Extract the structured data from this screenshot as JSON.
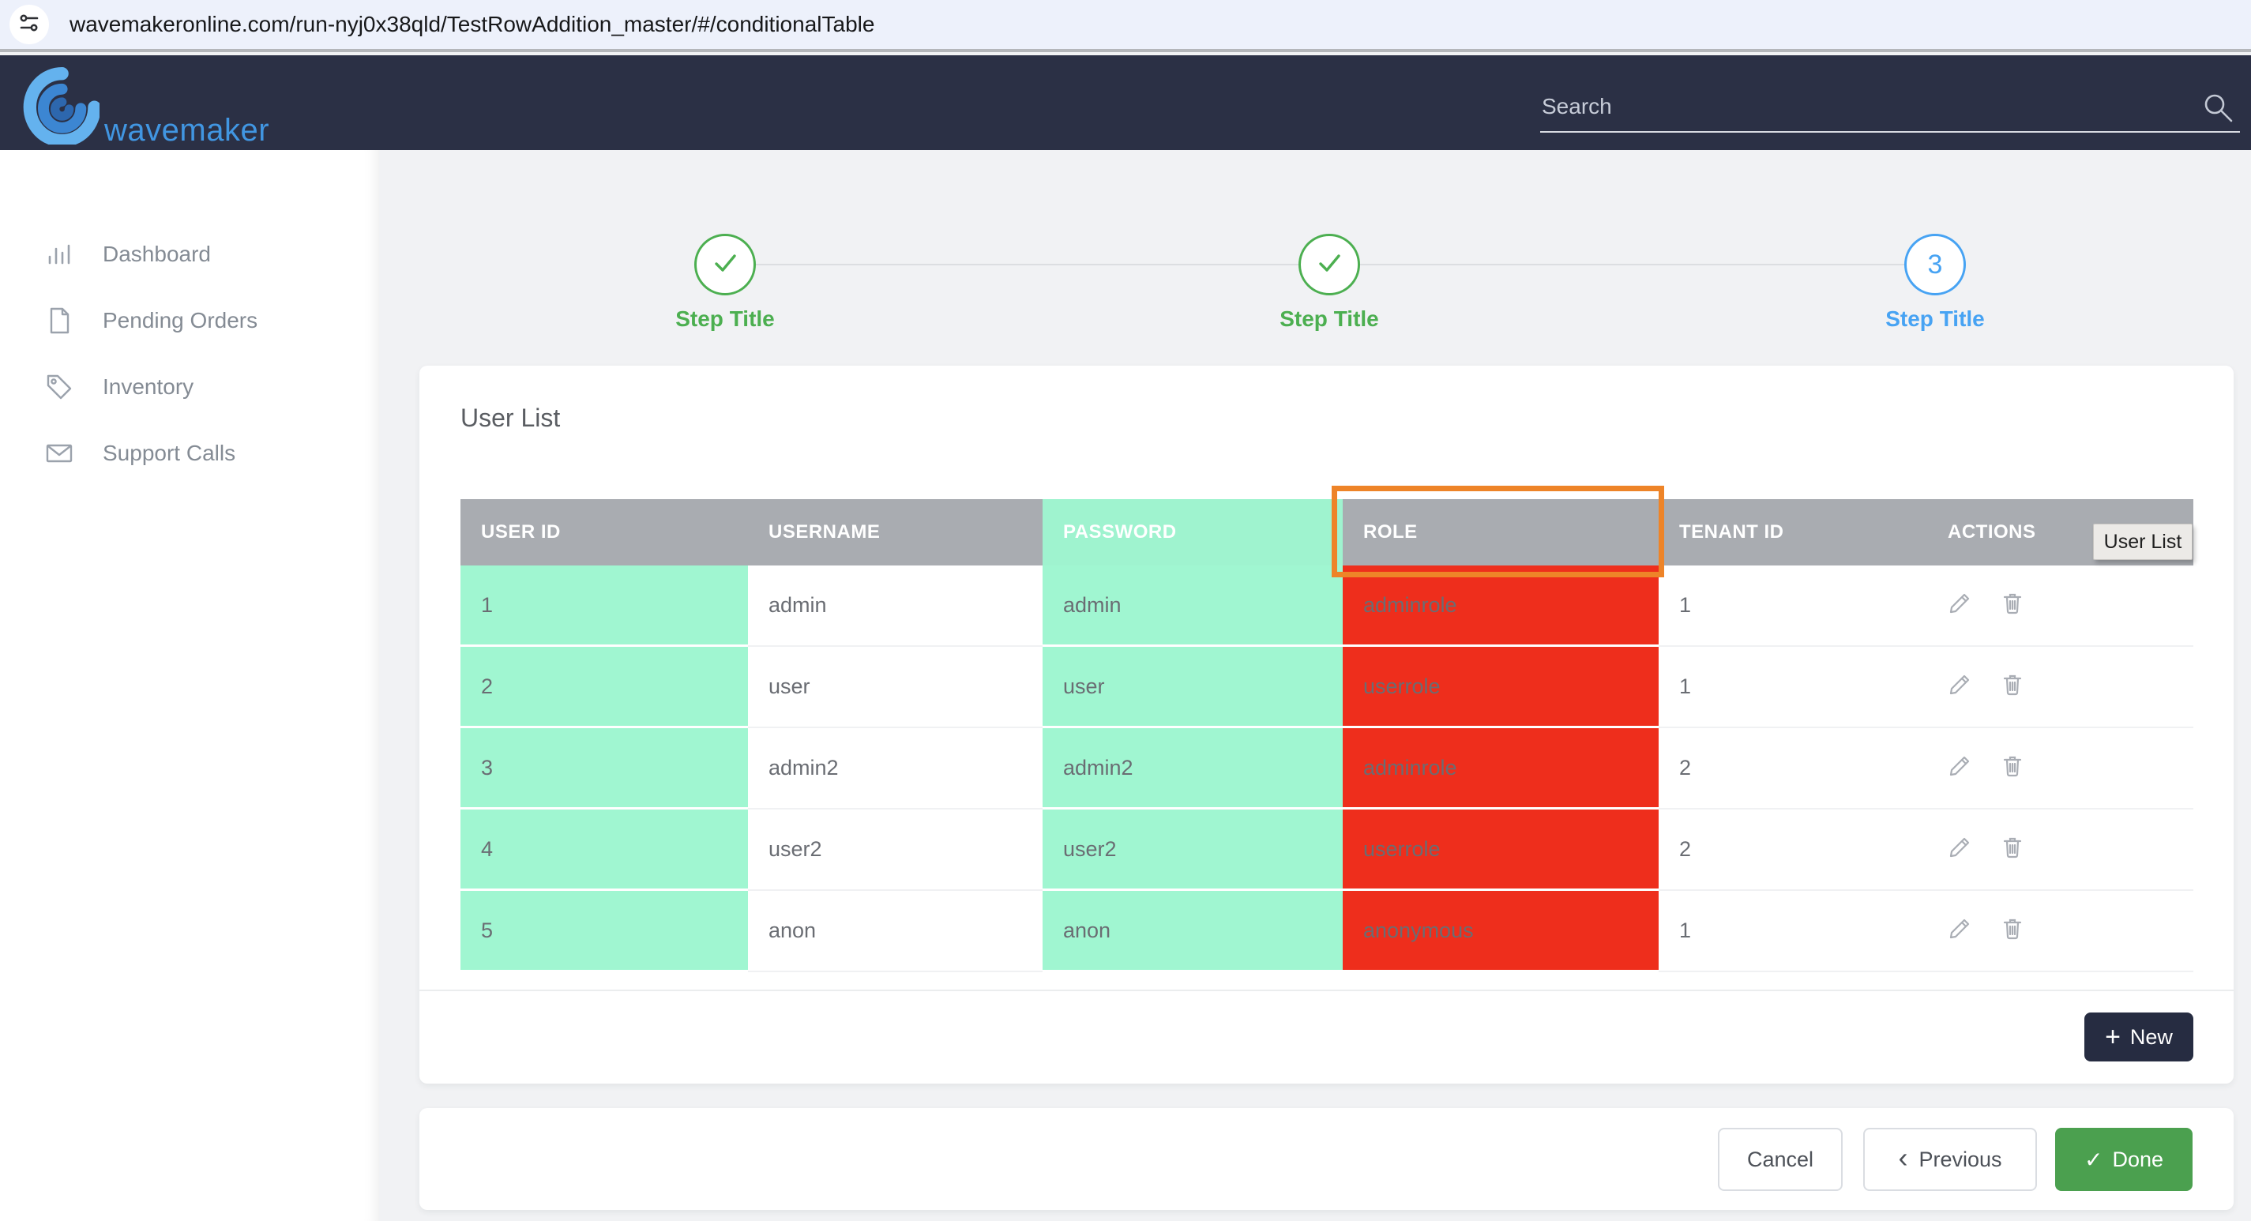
{
  "browser": {
    "url": "wavemakeronline.com/run-nyj0x38qld/TestRowAddition_master/#/conditionalTable"
  },
  "header": {
    "brand": "wavemaker",
    "search_placeholder": "Search"
  },
  "sidebar": {
    "items": [
      {
        "label": "Dashboard",
        "icon": "bar-chart-icon"
      },
      {
        "label": "Pending Orders",
        "icon": "document-icon"
      },
      {
        "label": "Inventory",
        "icon": "tag-icon"
      },
      {
        "label": "Support Calls",
        "icon": "envelope-icon"
      }
    ]
  },
  "wizard": {
    "steps": [
      {
        "label": "Step Title",
        "status": "completed"
      },
      {
        "label": "Step Title",
        "status": "completed"
      },
      {
        "label": "Step Title",
        "status": "current",
        "number": "3"
      }
    ]
  },
  "panel": {
    "title": "User List",
    "tooltip": "User List",
    "table": {
      "columns": [
        "USER ID",
        "USERNAME",
        "PASSWORD",
        "ROLE",
        "TENANT ID",
        "ACTIONS"
      ],
      "rows": [
        [
          "1",
          "admin",
          "admin",
          "adminrole",
          "1"
        ],
        [
          "2",
          "user",
          "user",
          "userrole",
          "1"
        ],
        [
          "3",
          "admin2",
          "admin2",
          "adminrole",
          "2"
        ],
        [
          "4",
          "user2",
          "user2",
          "userrole",
          "2"
        ],
        [
          "5",
          "anon",
          "anon",
          "anonymous",
          "1"
        ]
      ]
    },
    "new_button": "New"
  },
  "footer": {
    "cancel": "Cancel",
    "previous": "Previous",
    "done": "Done"
  },
  "colors": {
    "navbar_navy": "#2b3045",
    "header_gray": "#a9acb1",
    "mint": "#a0f6d1",
    "red": "#ee2e1c",
    "highlight_orange": "#ee8428",
    "step_green": "#4caf50",
    "step_blue": "#47a3f3",
    "done_green": "#4ba04f",
    "new_button_navy": "#262c41"
  }
}
